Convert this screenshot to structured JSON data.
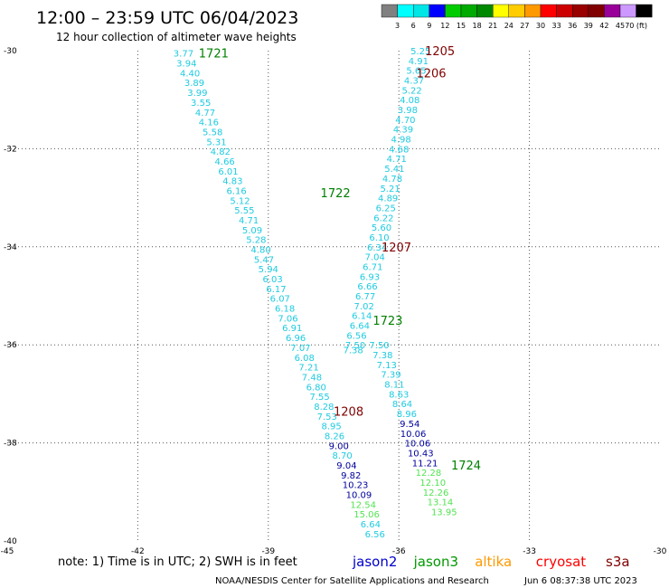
{
  "title": "12:00 – 23:59 UTC 06/04/2023",
  "subtitle": "12 hour collection of altimeter wave heights",
  "note": "note:  1) Time is in UTC; 2) SWH is in feet",
  "footer_left": "NOAA/NESDIS Center for Satellite Applications and Research",
  "footer_right": "Jun  6 08:37:38 UTC 2023",
  "colorbar": {
    "labels": [
      "3",
      "6",
      "9",
      "12",
      "15",
      "18",
      "21",
      "24",
      "27",
      "30",
      "33",
      "36",
      "39",
      "42",
      "45",
      "70 (ft)"
    ],
    "colors": [
      "#808080",
      "#00ffff",
      "#00e5e5",
      "#0000ff",
      "#00cc00",
      "#00aa00",
      "#008800",
      "#ffff00",
      "#ffcc00",
      "#ff9900",
      "#ff0000",
      "#cc0000",
      "#990000",
      "#800000",
      "#990099",
      "#cc99ff",
      "#000000"
    ]
  },
  "satellites": [
    {
      "name": "jason2",
      "color": "#0000cc"
    },
    {
      "name": "jason3",
      "color": "#009900"
    },
    {
      "name": "altika",
      "color": "#ff9900"
    },
    {
      "name": "cryosat",
      "color": "#ff0000"
    },
    {
      "name": "s3a",
      "color": "#800000"
    }
  ],
  "chart_data": {
    "type": "scatter",
    "title": "12:00 – 23:59 UTC 06/04/2023",
    "subtitle": "12 hour collection of altimeter wave heights",
    "xlim": [
      -45,
      -30
    ],
    "ylim": [
      -40,
      -30
    ],
    "x_ticks": [
      -45,
      -42,
      -39,
      -36,
      -33,
      -30
    ],
    "y_ticks": [
      -30,
      -32,
      -34,
      -36,
      -38,
      -40
    ],
    "x_tick_labels": [
      "-45",
      "-42",
      "-39",
      "-36",
      "-33",
      "-30"
    ],
    "y_tick_labels": [
      "-30",
      "-32",
      "-34",
      "-36",
      "-38",
      "-40"
    ],
    "grid": true,
    "color_scale": [
      {
        "max": 9,
        "color": "#1ecbe1"
      },
      {
        "max": 12,
        "color": "#00009c"
      },
      {
        "max": 15,
        "color": "#53e353"
      }
    ],
    "pass_labels": [
      {
        "text": "1721",
        "x": -40.6,
        "y": -30.05,
        "color": "#008000"
      },
      {
        "text": "1722",
        "x": -37.8,
        "y": -32.9,
        "color": "#008000"
      },
      {
        "text": "1723",
        "x": -36.6,
        "y": -35.5,
        "color": "#008000"
      },
      {
        "text": "1724",
        "x": -34.8,
        "y": -38.45,
        "color": "#008000"
      },
      {
        "text": "1205",
        "x": -35.4,
        "y": -30.0,
        "color": "#800000"
      },
      {
        "text": "1206",
        "x": -35.6,
        "y": -30.45,
        "color": "#800000"
      },
      {
        "text": "1207",
        "x": -36.4,
        "y": -34.0,
        "color": "#800000"
      },
      {
        "text": "1208",
        "x": -37.5,
        "y": -37.35,
        "color": "#800000"
      }
    ],
    "series": [
      {
        "name": "1721",
        "x": [
          -40.95,
          -40.88,
          -40.8,
          -40.7,
          -40.63,
          -40.55,
          -40.45,
          -40.37,
          -40.28,
          -40.19,
          -40.1,
          -40.0,
          -39.92,
          -39.82,
          -39.73,
          -39.65,
          -39.55,
          -39.45,
          -39.37,
          -39.28,
          -39.17,
          -39.1,
          -39.0,
          -38.9,
          -38.82,
          -38.73,
          -38.62,
          -38.55,
          -38.45,
          -38.37,
          -38.26,
          -38.17,
          -38.07,
          -38.0,
          -37.9,
          -37.82,
          -37.72,
          -37.65,
          -37.55,
          -37.48,
          -37.38,
          -37.3,
          -37.2,
          -37.1,
          -37.0,
          -36.92,
          -36.82,
          -36.74,
          -36.65,
          -36.55,
          -36.45,
          -36.37,
          -36.28,
          -36.18,
          -36.1,
          -36.0,
          -35.92,
          -35.82,
          -35.75,
          -35.67,
          -35.57,
          -35.5,
          -35.4,
          -35.32,
          -35.22,
          -35.15,
          -35.05,
          -34.96
        ],
        "y": [
          -30.05,
          -30.25,
          -30.45,
          -30.65,
          -30.85,
          -31.05,
          -31.25,
          -31.45,
          -31.65,
          -31.85,
          -32.05,
          -32.25,
          -32.45,
          -32.65,
          -32.85,
          -33.05,
          -33.25,
          -33.45,
          -33.65,
          -33.85,
          -34.05,
          -34.25,
          -34.45,
          -34.65,
          -34.85,
          -35.05,
          -35.25,
          -35.45,
          -35.65,
          -35.85,
          -36.05,
          -36.25,
          -36.45,
          -36.65,
          -36.85,
          -37.05,
          -37.25,
          -37.45,
          -37.65,
          -37.85,
          -38.05,
          -38.25,
          -38.45,
          -38.65,
          -38.85,
          -39.05,
          -39.25,
          -39.45,
          -39.65,
          -39.85,
          -36.0,
          -36.2,
          -36.4,
          -36.6,
          -36.8,
          -37.0,
          -37.2,
          -37.4,
          -37.6,
          -37.8,
          -38.0,
          -38.2,
          -38.4,
          -38.6,
          -38.8,
          -39.0,
          -39.2,
          -39.4
        ],
        "values": [
          3.77,
          3.94,
          4.4,
          3.89,
          3.99,
          3.55,
          4.77,
          4.16,
          5.58,
          5.31,
          4.82,
          4.66,
          6.01,
          4.83,
          6.16,
          5.12,
          5.55,
          4.71,
          5.09,
          5.28,
          4.8,
          5.47,
          5.94,
          6.03,
          6.17,
          6.07,
          6.18,
          7.06,
          6.91,
          6.96,
          7.07,
          6.08,
          7.21,
          7.48,
          6.8,
          7.55,
          8.28,
          7.53,
          8.95,
          8.26,
          9.0,
          8.7,
          9.04,
          9.82,
          10.23,
          10.09,
          12.54,
          15.06,
          6.64,
          6.56,
          7.5,
          7.38,
          7.13,
          7.39,
          8.11,
          8.63,
          8.64,
          8.96,
          9.54,
          10.06,
          10.06,
          10.43,
          11.21,
          12.28,
          12.1,
          12.26,
          13.14,
          13.95
        ]
      },
      {
        "name": "1205",
        "x": [
          -35.5,
          -35.55,
          -35.6,
          -35.65,
          -35.7,
          -35.75,
          -35.8,
          -35.85,
          -35.9,
          -35.95,
          -36.0,
          -36.05,
          -36.1,
          -36.15,
          -36.2,
          -36.25,
          -36.3,
          -36.35,
          -36.4,
          -36.45,
          -36.5,
          -36.55,
          -36.6,
          -36.67,
          -36.72,
          -36.77,
          -36.8,
          -36.85,
          -36.9,
          -36.97,
          -37.0,
          -37.05
        ],
        "y": [
          -30.0,
          -30.2,
          -30.4,
          -30.6,
          -30.8,
          -31.0,
          -31.2,
          -31.4,
          -31.6,
          -31.8,
          -32.0,
          -32.2,
          -32.4,
          -32.6,
          -32.8,
          -33.0,
          -33.2,
          -33.4,
          -33.6,
          -33.8,
          -34.0,
          -34.2,
          -34.4,
          -34.6,
          -34.8,
          -35.0,
          -35.2,
          -35.4,
          -35.6,
          -35.8,
          -36.0,
          -36.1
        ],
        "values": [
          5.25,
          4.91,
          5.65,
          4.37,
          5.22,
          4.08,
          3.98,
          4.7,
          4.39,
          4.98,
          4.68,
          4.71,
          5.41,
          4.78,
          5.21,
          4.89,
          6.25,
          6.22,
          5.6,
          6.1,
          6.34,
          7.04,
          6.71,
          6.93,
          6.66,
          6.77,
          7.02,
          6.14,
          6.64,
          6.56,
          7.5,
          7.38
        ]
      }
    ]
  }
}
